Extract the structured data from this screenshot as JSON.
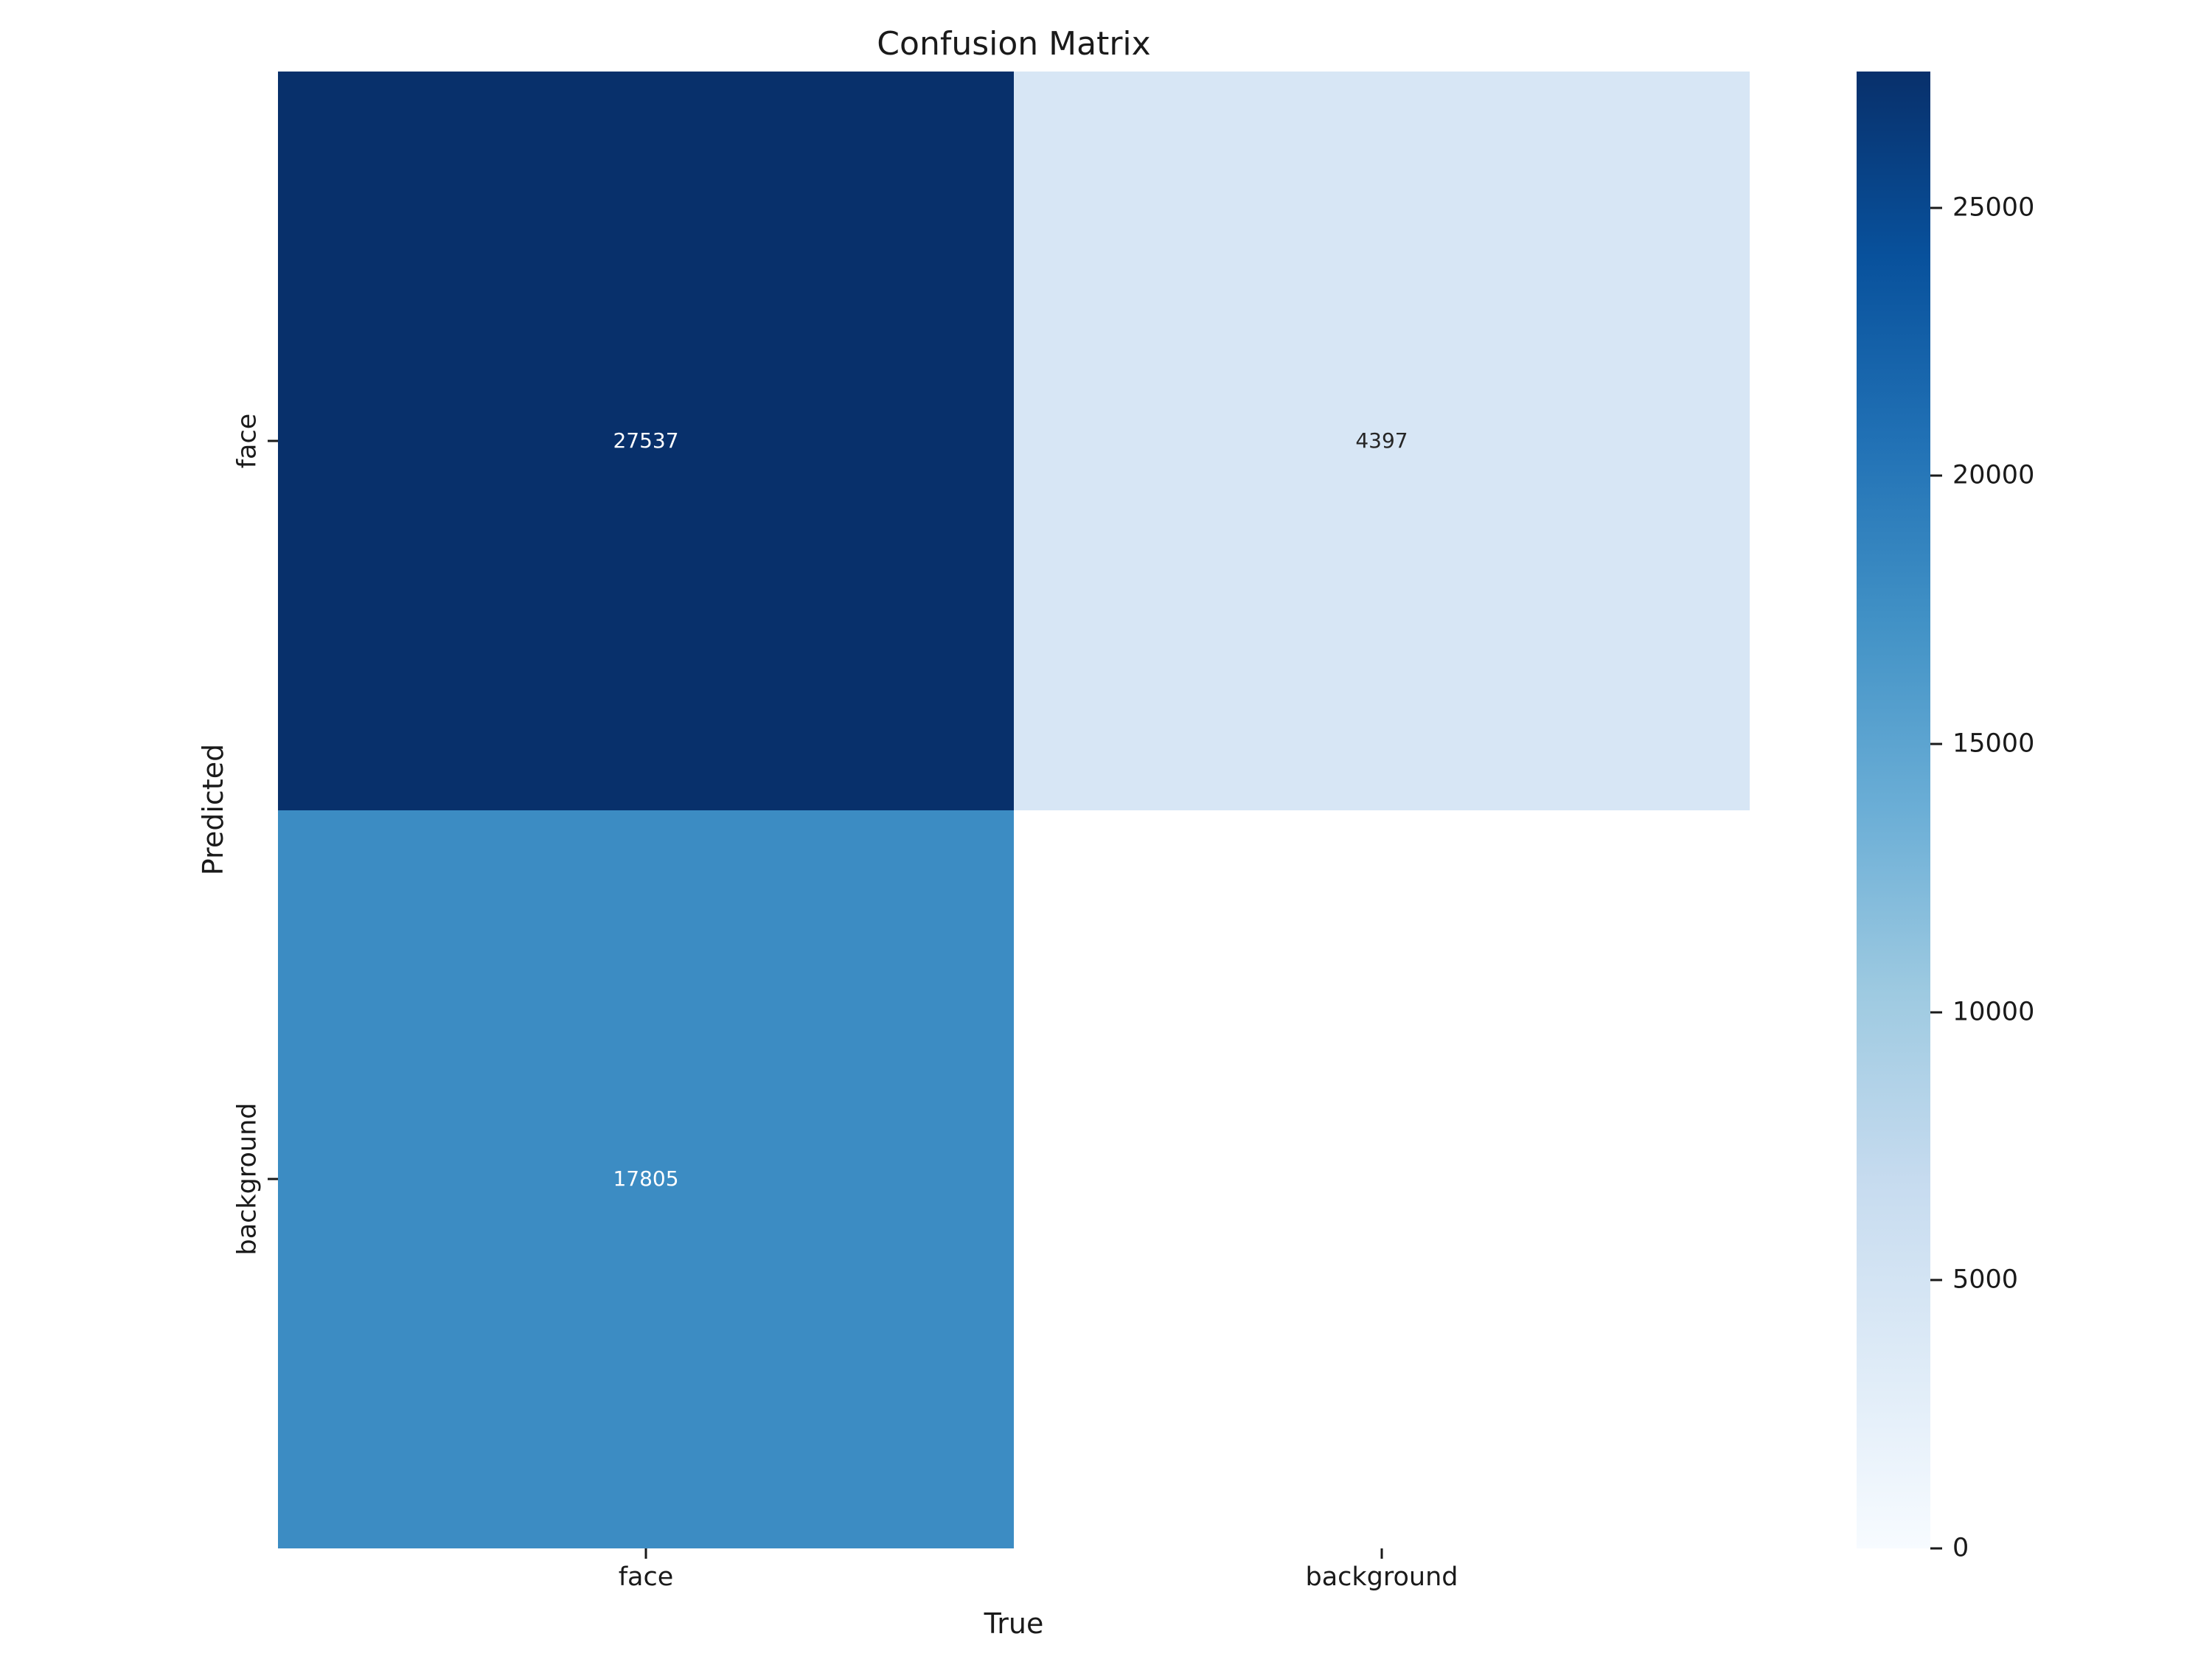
{
  "figure": {
    "background": "#ffffff",
    "text_color": "#1a1a1a"
  },
  "chart_data": {
    "type": "heatmap",
    "title": "Confusion Matrix",
    "xlabel": "True",
    "ylabel": "Predicted",
    "x_categories": [
      "face",
      "background"
    ],
    "y_categories": [
      "face",
      "background"
    ],
    "matrix": [
      [
        27537,
        4397
      ],
      [
        17805,
        null
      ]
    ],
    "annotations": [
      [
        "27537",
        "4397"
      ],
      [
        "17805",
        ""
      ]
    ],
    "colormap": "Blues",
    "vmin": 0,
    "vmax": 27537,
    "grid": false,
    "cell_colors": [
      [
        "#08306b",
        "#d7e6f5"
      ],
      [
        "#3c8cc3",
        "#ffffff"
      ]
    ],
    "cell_text_colors": [
      [
        "#ffffff",
        "#262626"
      ],
      [
        "#ffffff",
        "#262626"
      ]
    ],
    "colorbar": {
      "position": "right",
      "ticks": [
        0,
        5000,
        10000,
        15000,
        20000,
        25000
      ],
      "gradient_stops": [
        "#f7fbff",
        "#deebf7",
        "#c6dbef",
        "#9ecae1",
        "#6baed6",
        "#4292c6",
        "#2171b5",
        "#08519c",
        "#08306b"
      ]
    }
  }
}
